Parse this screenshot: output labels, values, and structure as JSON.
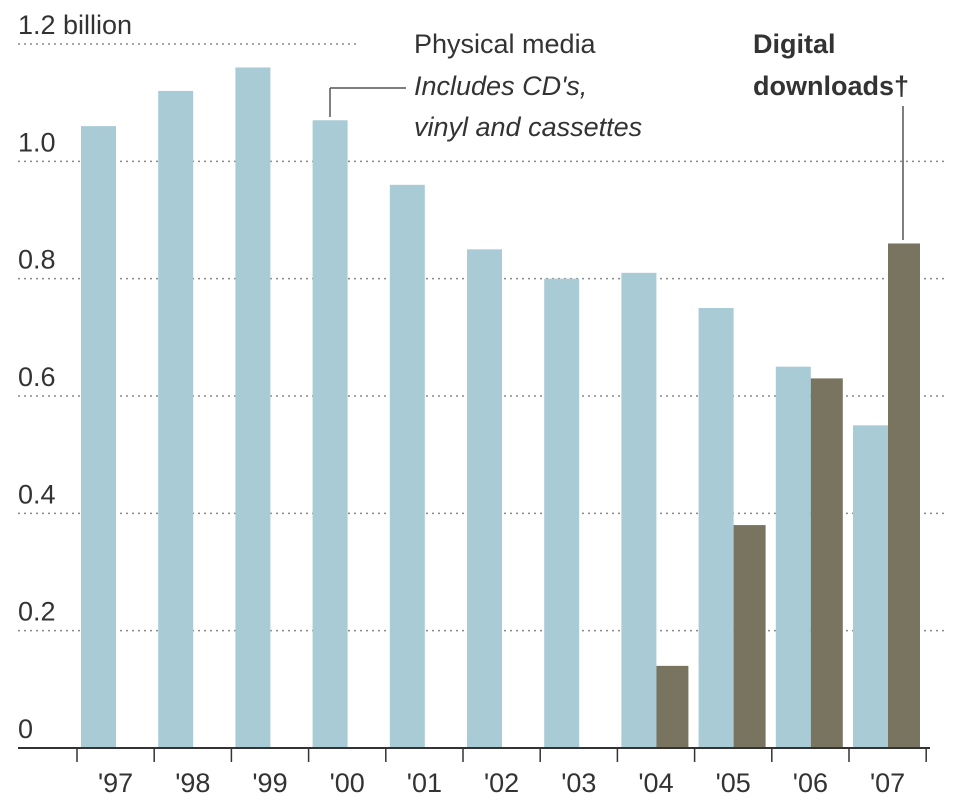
{
  "chart_data": {
    "type": "bar",
    "categories": [
      "'97",
      "'98",
      "'99",
      "'00",
      "'01",
      "'02",
      "'03",
      "'04",
      "'05",
      "'06",
      "'07"
    ],
    "series": [
      {
        "name": "Physical media",
        "color": "#a8cbd6",
        "values": [
          1.06,
          1.12,
          1.16,
          1.07,
          0.96,
          0.85,
          0.8,
          0.81,
          0.75,
          0.65,
          0.55
        ]
      },
      {
        "name": "Digital downloads†",
        "color": "#78745f",
        "values": [
          null,
          null,
          null,
          null,
          null,
          null,
          null,
          0.14,
          0.38,
          0.63,
          0.86
        ]
      }
    ],
    "ylim": [
      0,
      1.2
    ],
    "yticks": [
      "0",
      "0.2",
      "0.4",
      "0.6",
      "0.8",
      "1.0",
      "1.2 billion"
    ],
    "grid": true,
    "annotations": {
      "physical_title": "Physical media",
      "physical_note_1": "Includes CD's,",
      "physical_note_2": "vinyl and cassettes",
      "digital_title_1": "Digital",
      "digital_title_2": "downloads†"
    }
  }
}
